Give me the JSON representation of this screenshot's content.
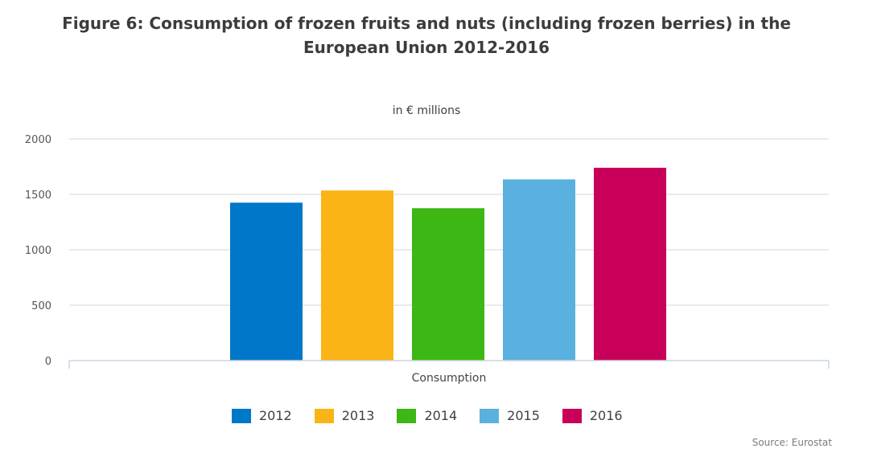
{
  "title_lines": [
    "Figure 6: Consumption of frozen fruits and nuts (including frozen berries) in the",
    "European Union 2012-2016"
  ],
  "source": "Source: Eurostat",
  "chart_data": {
    "type": "bar",
    "title": "Figure 6: Consumption of frozen fruits and nuts (including frozen berries) in the European Union 2012-2016",
    "subtitle": "in € millions",
    "categories": [
      "Consumption"
    ],
    "series": [
      {
        "name": "2012",
        "values": [
          1425
        ],
        "color": "#0077c8"
      },
      {
        "name": "2013",
        "values": [
          1535
        ],
        "color": "#fbb415"
      },
      {
        "name": "2014",
        "values": [
          1375
        ],
        "color": "#3cb713"
      },
      {
        "name": "2015",
        "values": [
          1635
        ],
        "color": "#5ab0de"
      },
      {
        "name": "2016",
        "values": [
          1740
        ],
        "color": "#c8005a"
      }
    ],
    "yticks": [
      "0",
      "500",
      "1000",
      "1500",
      "2000"
    ],
    "ylim": [
      0,
      2000
    ],
    "xlabel": "",
    "ylabel": "",
    "grid": true,
    "legend_position": "bottom"
  }
}
